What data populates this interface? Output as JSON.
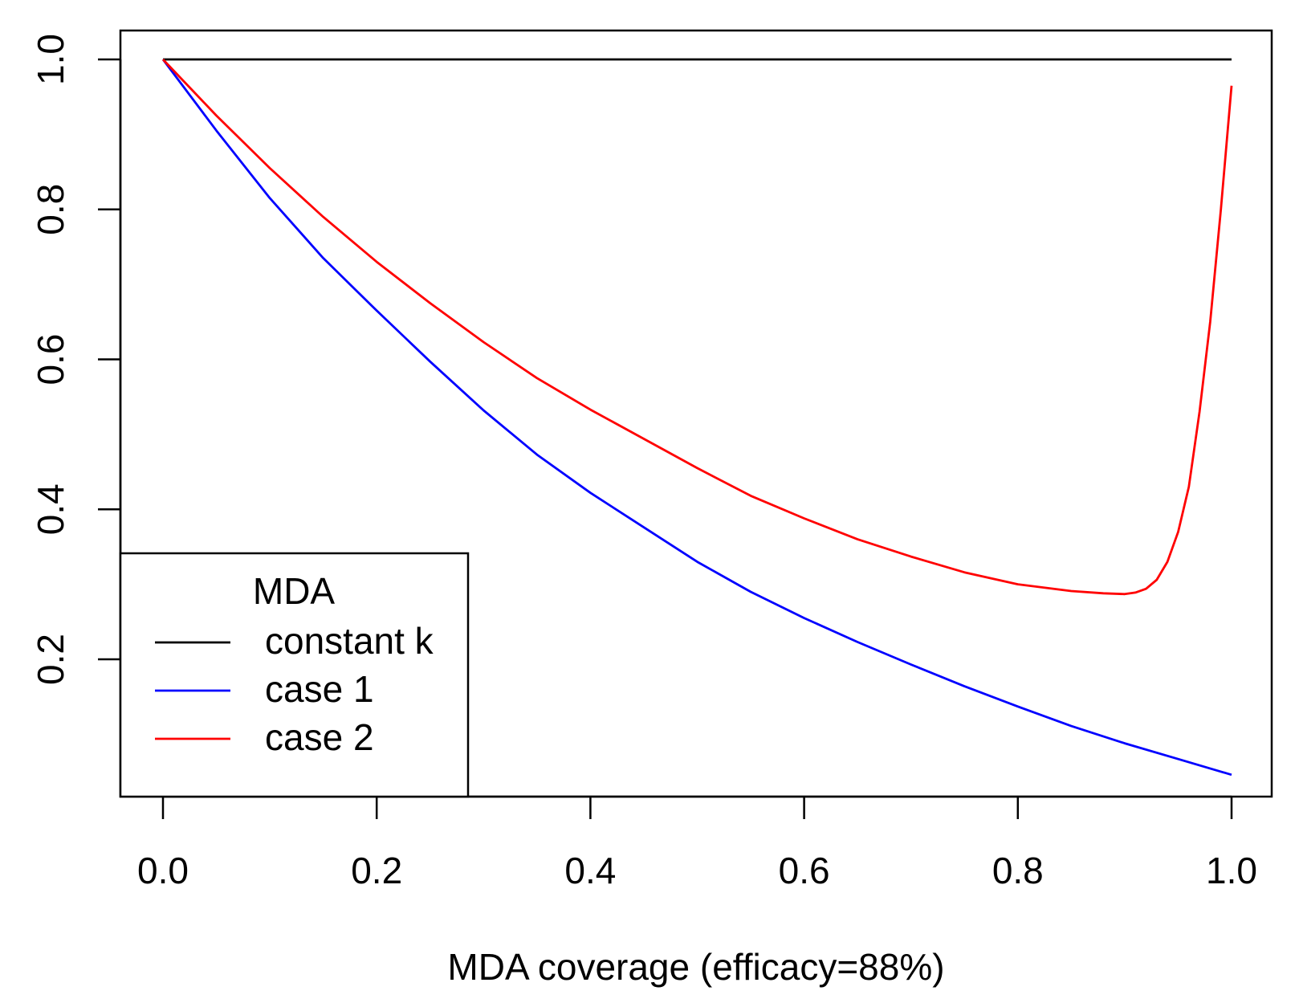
{
  "chart_data": {
    "type": "line",
    "title": "",
    "xlabel": "MDA coverage (efficacy=88%)",
    "ylabel": "",
    "xlim": [
      0,
      1
    ],
    "ylim": [
      0.05,
      1
    ],
    "x_ticks": [
      "0.0",
      "0.2",
      "0.4",
      "0.6",
      "0.8",
      "1.0"
    ],
    "y_ticks": [
      "0.2",
      "0.4",
      "0.6",
      "0.8",
      "1.0"
    ],
    "grid": false,
    "legend": {
      "title": "MDA",
      "position": "bottom-left",
      "entries": [
        "constant k",
        "case 1",
        "case 2"
      ]
    },
    "series": [
      {
        "name": "constant k",
        "color": "#000000",
        "x": [
          0,
          1
        ],
        "y": [
          1.0,
          1.0
        ]
      },
      {
        "name": "case 1",
        "color": "#0000ff",
        "x": [
          0,
          0.05,
          0.1,
          0.15,
          0.2,
          0.25,
          0.3,
          0.35,
          0.4,
          0.45,
          0.5,
          0.55,
          0.6,
          0.65,
          0.7,
          0.75,
          0.8,
          0.85,
          0.9,
          0.95,
          1.0
        ],
        "y": [
          1.0,
          0.905,
          0.815,
          0.735,
          0.665,
          0.597,
          0.532,
          0.473,
          0.422,
          0.376,
          0.33,
          0.29,
          0.255,
          0.223,
          0.193,
          0.164,
          0.137,
          0.111,
          0.088,
          0.067,
          0.046
        ]
      },
      {
        "name": "case 2",
        "color": "#ff0000",
        "x": [
          0,
          0.05,
          0.1,
          0.15,
          0.2,
          0.25,
          0.3,
          0.35,
          0.4,
          0.45,
          0.5,
          0.55,
          0.6,
          0.65,
          0.7,
          0.75,
          0.8,
          0.85,
          0.88,
          0.9,
          0.91,
          0.92,
          0.93,
          0.94,
          0.95,
          0.96,
          0.97,
          0.98,
          0.99,
          1.0
        ],
        "y": [
          1.0,
          0.925,
          0.855,
          0.79,
          0.73,
          0.675,
          0.623,
          0.575,
          0.533,
          0.494,
          0.455,
          0.418,
          0.388,
          0.36,
          0.337,
          0.316,
          0.3,
          0.291,
          0.288,
          0.287,
          0.289,
          0.294,
          0.306,
          0.33,
          0.37,
          0.43,
          0.53,
          0.65,
          0.8,
          0.965
        ]
      }
    ]
  }
}
